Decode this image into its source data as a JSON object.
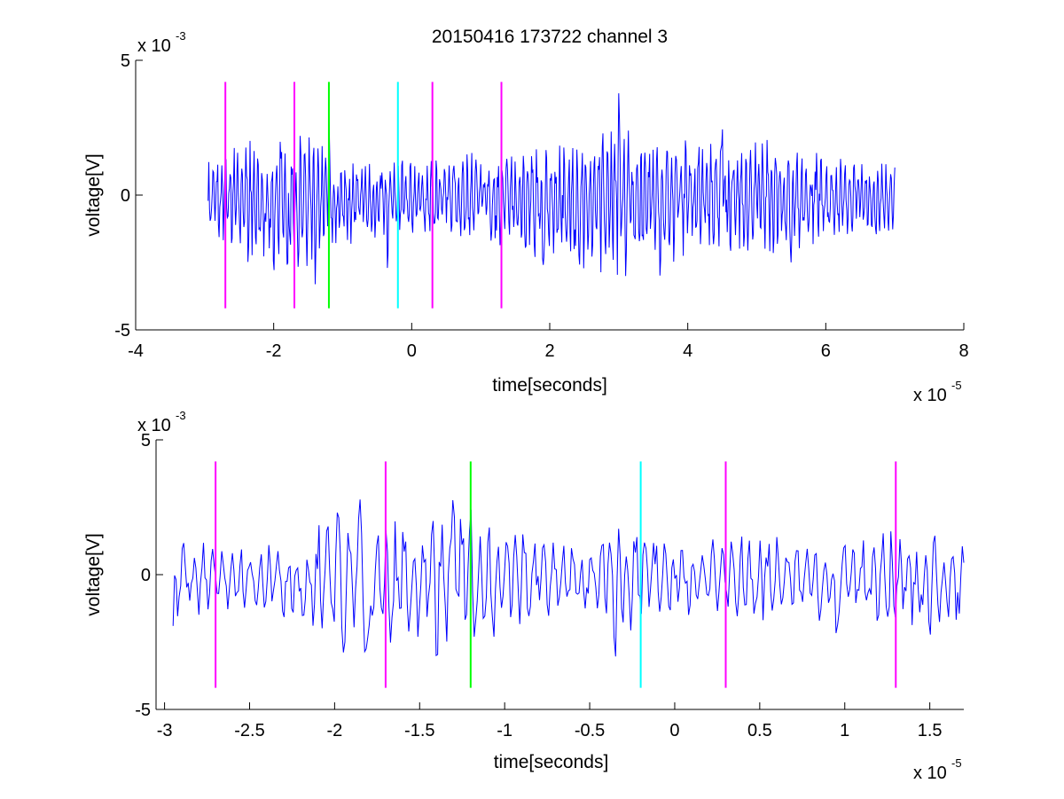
{
  "title": "20150416 173722 channel 3",
  "colors": {
    "signal": "#0000ff",
    "magenta": "#ff00ff",
    "green": "#00ff00",
    "cyan": "#00ffff",
    "axis": "#000000"
  },
  "chart_data": [
    {
      "type": "line",
      "title": "20150416 173722 channel 3",
      "xlabel": "time[seconds]",
      "ylabel": "voltage[V]",
      "x_exponent": {
        "base": "x 10",
        "power": "-5"
      },
      "y_exponent": {
        "base": "x 10",
        "power": "-3"
      },
      "xlim": [
        -4e-05,
        8e-05
      ],
      "ylim": [
        -0.005,
        0.005
      ],
      "xticks": [
        -4e-05,
        -2e-05,
        0,
        2e-05,
        4e-05,
        6e-05,
        8e-05
      ],
      "xtick_labels": [
        "-4",
        "-2",
        "0",
        "2",
        "4",
        "6",
        "8"
      ],
      "yticks": [
        -0.005,
        0,
        0.005
      ],
      "ytick_labels": [
        "-5",
        "0",
        "5"
      ],
      "grid": false,
      "signal": {
        "color": "signal",
        "x_start": -2.95e-05,
        "x_end": 7e-05,
        "envelope": [
          [
            -2.95e-05,
            0.0019
          ],
          [
            -2.7e-05,
            0.002
          ],
          [
            -2e-05,
            0.0028
          ],
          [
            -1.5e-05,
            0.0026
          ],
          [
            -1e-05,
            0.0018
          ],
          [
            -5e-06,
            0.0015
          ],
          [
            0,
            0.0015
          ],
          [
            1e-05,
            0.0018
          ],
          [
            2e-05,
            0.0023
          ],
          [
            3e-05,
            0.003
          ],
          [
            3.5e-05,
            0.0025
          ],
          [
            4.5e-05,
            0.002
          ],
          [
            5e-05,
            0.0024
          ],
          [
            6e-05,
            0.0017
          ],
          [
            7e-05,
            0.0013
          ]
        ],
        "peaks": [
          [
            -1.2e-05,
            0.0033
          ],
          [
            -1.4e-05,
            -0.0037
          ],
          [
            -2e-05,
            -0.0032
          ],
          [
            -1.8e-05,
            -0.0034
          ],
          [
            -3.5e-06,
            -0.0034
          ],
          [
            1.9e-05,
            -0.0035
          ],
          [
            3e-05,
            0.0038
          ],
          [
            3.1e-05,
            -0.003
          ],
          [
            4.5e-05,
            0.003
          ],
          [
            5.5e-05,
            -0.0028
          ],
          [
            3.6e-05,
            -0.0032
          ]
        ]
      },
      "markers": [
        {
          "x": -2.7e-05,
          "color": "magenta",
          "y_top": 0.0042,
          "y_bottom": -0.0042
        },
        {
          "x": -1.7e-05,
          "color": "magenta",
          "y_top": 0.0042,
          "y_bottom": -0.0042
        },
        {
          "x": -1.2e-05,
          "color": "green",
          "y_top": 0.0042,
          "y_bottom": -0.0042
        },
        {
          "x": -2e-06,
          "color": "cyan",
          "y_top": 0.0042,
          "y_bottom": -0.0042
        },
        {
          "x": 3e-06,
          "color": "magenta",
          "y_top": 0.0042,
          "y_bottom": -0.0042
        },
        {
          "x": 1.3e-05,
          "color": "magenta",
          "y_top": 0.0042,
          "y_bottom": -0.0042
        }
      ]
    },
    {
      "type": "line",
      "title": "",
      "xlabel": "time[seconds]",
      "ylabel": "voltage[V]",
      "x_exponent": {
        "base": "x 10",
        "power": "-5"
      },
      "y_exponent": {
        "base": "x 10",
        "power": "-3"
      },
      "xlim": [
        -3.05e-05,
        1.7e-05
      ],
      "ylim": [
        -0.005,
        0.005
      ],
      "xticks": [
        -3e-05,
        -2.5e-05,
        -2e-05,
        -1.5e-05,
        -1e-05,
        -5e-06,
        0,
        5e-06,
        1e-05,
        1.5e-05
      ],
      "xtick_labels": [
        "-3",
        "-2.5",
        "-2",
        "-1.5",
        "-1",
        "-0.5",
        "0",
        "0.5",
        "1",
        "1.5"
      ],
      "yticks": [
        -0.005,
        0,
        0.005
      ],
      "ytick_labels": [
        "-5",
        "0",
        "5"
      ],
      "grid": false,
      "signal": {
        "color": "signal",
        "x_start": -2.95e-05,
        "x_end": 1.7e-05,
        "envelope": [
          [
            -2.95e-05,
            0.0019
          ],
          [
            -2.8e-05,
            0.0014
          ],
          [
            -2.5e-05,
            0.0012
          ],
          [
            -2.2e-05,
            0.0016
          ],
          [
            -2e-05,
            0.0026
          ],
          [
            -1.8e-05,
            0.003
          ],
          [
            -1.5e-05,
            0.0024
          ],
          [
            -1.2e-05,
            0.0026
          ],
          [
            -8e-06,
            0.0016
          ],
          [
            -5e-06,
            0.0014
          ],
          [
            -3e-06,
            0.0022
          ],
          [
            0,
            0.0014
          ],
          [
            5e-06,
            0.0016
          ],
          [
            1e-05,
            0.0018
          ],
          [
            1.4e-05,
            0.002
          ],
          [
            1.7e-05,
            0.0018
          ]
        ],
        "peaks": [
          [
            -1.95e-05,
            -0.0031
          ],
          [
            -1.8e-05,
            -0.0034
          ],
          [
            -1.3e-05,
            0.0033
          ],
          [
            -1.4e-05,
            -0.0037
          ],
          [
            -1.2e-05,
            0.0026
          ],
          [
            -3.5e-06,
            -0.0034
          ],
          [
            9.5e-06,
            -0.0024
          ],
          [
            1.5e-05,
            -0.0025
          ],
          [
            -1.85e-05,
            0.0028
          ],
          [
            -2.95e-05,
            -0.0019
          ]
        ]
      },
      "markers": [
        {
          "x": -2.7e-05,
          "color": "magenta",
          "y_top": 0.0042,
          "y_bottom": -0.0042
        },
        {
          "x": -1.7e-05,
          "color": "magenta",
          "y_top": 0.0042,
          "y_bottom": -0.0042
        },
        {
          "x": -1.2e-05,
          "color": "green",
          "y_top": 0.0042,
          "y_bottom": -0.0042
        },
        {
          "x": -2e-06,
          "color": "cyan",
          "y_top": 0.0042,
          "y_bottom": -0.0042
        },
        {
          "x": 3e-06,
          "color": "magenta",
          "y_top": 0.0042,
          "y_bottom": -0.0042
        },
        {
          "x": 1.3e-05,
          "color": "magenta",
          "y_top": 0.0042,
          "y_bottom": -0.0042
        }
      ]
    }
  ]
}
